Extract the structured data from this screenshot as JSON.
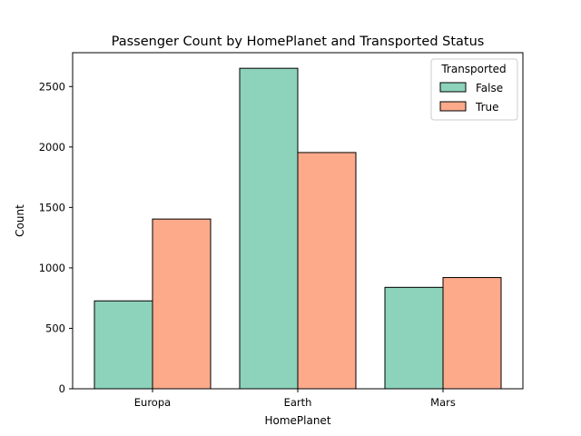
{
  "chart_data": {
    "type": "bar",
    "title": "Passenger Count by HomePlanet and Transported Status",
    "xlabel": "HomePlanet",
    "ylabel": "Count",
    "categories": [
      "Europa",
      "Earth",
      "Mars"
    ],
    "ylim": [
      0,
      2780
    ],
    "yticks": [
      0,
      500,
      1000,
      1500,
      2000,
      2500
    ],
    "grid": false,
    "legend": {
      "title": "Transported",
      "position": "top-right"
    },
    "series": [
      {
        "name": "False",
        "color": "#8dd3bb",
        "values": [
          727,
          2651,
          839
        ]
      },
      {
        "name": "True",
        "color": "#fdaa8a",
        "values": [
          1404,
          1954,
          920
        ]
      }
    ]
  }
}
